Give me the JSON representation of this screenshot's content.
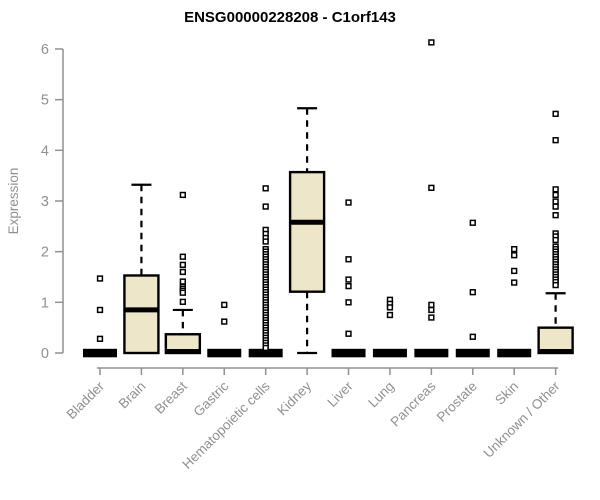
{
  "chart_data": {
    "type": "boxplot",
    "title": "ENSG00000228208 - C1orf143",
    "xlabel": "",
    "ylabel": "Expression",
    "ylim": [
      0,
      6
    ],
    "yticks": [
      0,
      1,
      2,
      3,
      4,
      5,
      6
    ],
    "grid": false,
    "legend": "none",
    "box_fill_color": "#EDE6C9",
    "box_stroke_color": "#000000",
    "axis_color": "#909090",
    "title_color": "#000000",
    "categories": [
      "Bladder",
      "Brain",
      "Breast",
      "Gastric",
      "Hematopoietic cells",
      "Kidney",
      "Liver",
      "Lung",
      "Pancreas",
      "Prostate",
      "Skin",
      "Unknown / Other"
    ],
    "boxes": [
      {
        "category": "Bladder",
        "q1": 0,
        "median": 0,
        "q3": 0,
        "whisker_low": 0,
        "whisker_high": 0,
        "outliers": [
          1.47,
          0.85,
          0.28
        ]
      },
      {
        "category": "Brain",
        "q1": 0,
        "median": 0.85,
        "q3": 1.53,
        "whisker_low": 0,
        "whisker_high": 3.32,
        "outliers": []
      },
      {
        "category": "Breast",
        "q1": 0,
        "median": 0.03,
        "q3": 0.37,
        "whisker_low": 0,
        "whisker_high": 0.85,
        "outliers": [
          3.12,
          1.9,
          1.74,
          1.6,
          1.41,
          1.31,
          1.27,
          1.23,
          1.19,
          1.01
        ]
      },
      {
        "category": "Gastric",
        "q1": 0,
        "median": 0,
        "q3": 0,
        "whisker_low": 0,
        "whisker_high": 0,
        "outliers": [
          0.95,
          0.62
        ]
      },
      {
        "category": "Hematopoietic cells",
        "q1": 0,
        "median": 0,
        "q3": 0,
        "whisker_low": 0,
        "whisker_high": 0,
        "outliers": [
          3.25,
          2.89,
          2.43,
          2.35,
          2.27,
          2.2,
          2.05,
          2.0,
          1.95,
          1.9,
          1.85,
          1.8,
          1.75,
          1.7,
          1.65,
          1.6,
          1.55,
          1.5,
          1.45,
          1.4,
          1.35,
          1.3,
          1.25,
          1.2,
          1.15,
          1.1,
          1.05,
          1.0,
          0.95,
          0.9,
          0.85,
          0.8,
          0.75,
          0.7,
          0.65,
          0.6,
          0.55,
          0.5,
          0.45,
          0.4,
          0.35,
          0.3,
          0.25,
          0.2,
          0.15,
          0.1
        ]
      },
      {
        "category": "Kidney",
        "q1": 1.21,
        "median": 2.58,
        "q3": 3.57,
        "whisker_low": 0,
        "whisker_high": 4.83,
        "outliers": []
      },
      {
        "category": "Liver",
        "q1": 0,
        "median": 0,
        "q3": 0,
        "whisker_low": 0,
        "whisker_high": 0,
        "outliers": [
          2.97,
          1.85,
          1.45,
          1.32,
          1.0,
          0.38
        ]
      },
      {
        "category": "Lung",
        "q1": 0,
        "median": 0,
        "q3": 0,
        "whisker_low": 0,
        "whisker_high": 0,
        "outliers": [
          1.05,
          0.97,
          0.9,
          0.75
        ]
      },
      {
        "category": "Pancreas",
        "q1": 0,
        "median": 0,
        "q3": 0,
        "whisker_low": 0,
        "whisker_high": 0,
        "outliers": [
          6.13,
          3.26,
          0.95,
          0.85,
          0.7
        ]
      },
      {
        "category": "Prostate",
        "q1": 0,
        "median": 0,
        "q3": 0,
        "whisker_low": 0,
        "whisker_high": 0,
        "outliers": [
          2.57,
          1.2,
          0.32
        ]
      },
      {
        "category": "Skin",
        "q1": 0,
        "median": 0,
        "q3": 0,
        "whisker_low": 0,
        "whisker_high": 0,
        "outliers": [
          2.05,
          1.93,
          1.62,
          1.39
        ]
      },
      {
        "category": "Unknown / Other",
        "q1": 0,
        "median": 0.03,
        "q3": 0.5,
        "whisker_low": 0,
        "whisker_high": 1.18,
        "outliers": [
          4.72,
          4.2,
          3.23,
          3.12,
          2.99,
          2.89,
          2.72,
          2.36,
          2.3,
          2.23,
          2.1,
          2.05,
          2.0,
          1.95,
          1.9,
          1.85,
          1.8,
          1.75,
          1.7,
          1.65,
          1.6,
          1.55,
          1.5,
          1.45,
          1.4,
          1.34
        ]
      }
    ]
  }
}
